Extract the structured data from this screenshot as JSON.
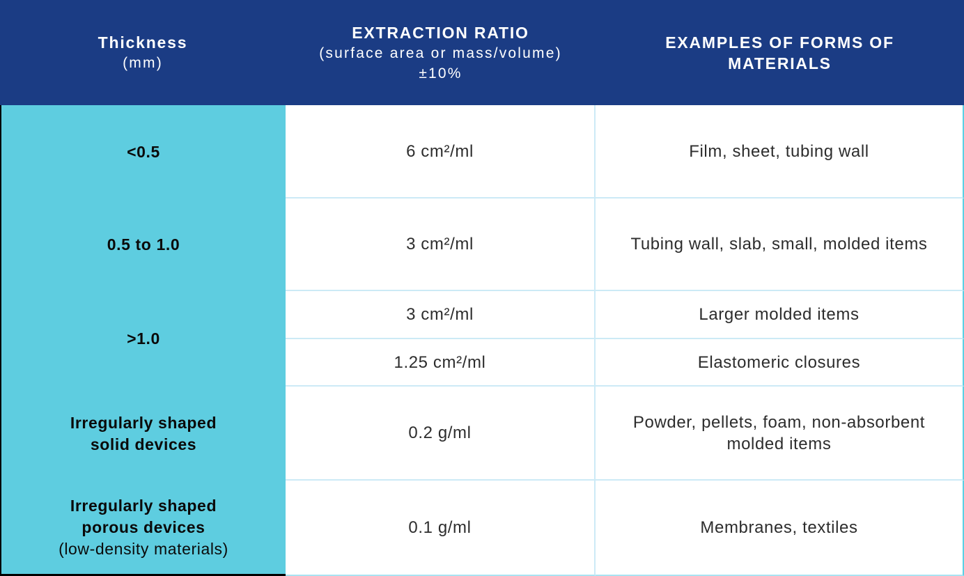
{
  "header": {
    "thickness_title": "Thickness",
    "thickness_unit": "(mm)",
    "ratio_title": "EXTRACTION RATIO",
    "ratio_sub1": "(surface area or mass/volume)",
    "ratio_sub2": "±10%",
    "examples_title": "EXAMPLES OF FORMS OF\nMATERIALS"
  },
  "body": {
    "row1": {
      "thickness": "<0.5",
      "ratio": "6 cm²/ml",
      "examples": "Film, sheet, tubing wall"
    },
    "row2": {
      "thickness": "0.5 to 1.0",
      "ratio": "3 cm²/ml",
      "examples": "Tubing wall, slab, small, molded items"
    },
    "row3": {
      "thickness": ">1.0",
      "ratio": "3 cm²/ml",
      "examples": "Larger molded items"
    },
    "row4": {
      "ratio": "1.25 cm²/ml",
      "examples": "Elastomeric closures"
    },
    "row5": {
      "thickness": "Irregularly shaped\nsolid devices",
      "ratio": "0.2 g/ml",
      "examples": "Powder, pellets, foam, non-absorbent\nmolded items"
    },
    "row6": {
      "thickness": "Irregularly shaped\nporous devices",
      "thickness_note": "(low-density materials)",
      "ratio": "0.1 g/ml",
      "examples": "Membranes, textiles"
    }
  },
  "colors": {
    "header-bg": "#1b3c84",
    "col1-bg": "#5ecde0",
    "rule": "#cceaf6",
    "edge-cyan": "#5ad0e4",
    "bottom-rule": "#a8e2f2",
    "header-text": "#ffffff",
    "col1-text": "#0a0a0a",
    "body-text": "#2d2d2d"
  },
  "chart_data": {
    "type": "table",
    "title": "Extraction ratios by material thickness",
    "columns": [
      "Thickness (mm)",
      "EXTRACTION RATIO (surface area or mass/volume) ±10%",
      "EXAMPLES OF FORMS OF MATERIALS"
    ],
    "rows": [
      [
        "<0.5",
        "6 cm²/ml",
        "Film, sheet, tubing wall"
      ],
      [
        "0.5 to 1.0",
        "3 cm²/ml",
        "Tubing wall, slab, small, molded items"
      ],
      [
        ">1.0",
        "3 cm²/ml",
        "Larger molded items"
      ],
      [
        ">1.0",
        "1.25 cm²/ml",
        "Elastomeric closures"
      ],
      [
        "Irregularly shaped solid devices",
        "0.2 g/ml",
        "Powder, pellets, foam, non-absorbent molded items"
      ],
      [
        "Irregularly shaped porous devices (low-density materials)",
        "0.1 g/ml",
        "Membranes, textiles"
      ]
    ],
    "layout_hints": {
      "header_bg": "#1b3c84",
      "first_column_bg": "#5ecde0",
      "merged_cells": "thickness '>1.0' spans the '3 cm²/ml' and '1.25 cm²/ml' rows"
    }
  }
}
